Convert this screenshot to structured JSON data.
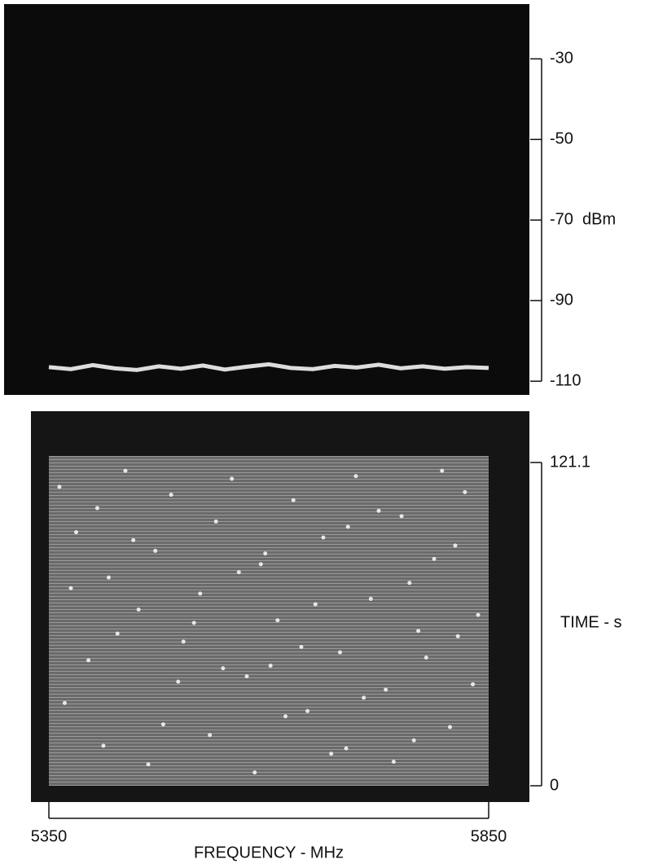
{
  "chart_data": [
    {
      "type": "line",
      "ylabel": "dBm",
      "xlim": [
        5350,
        5850
      ],
      "ylim": [
        -113.4,
        -16.4
      ],
      "yticks": [
        -30,
        -50,
        -70,
        -90,
        -110
      ],
      "series": [
        {
          "color": "#dddddd",
          "x": [
            5350,
            5375,
            5400,
            5425,
            5450,
            5475,
            5500,
            5525,
            5550,
            5575,
            5600,
            5625,
            5650,
            5675,
            5700,
            5725,
            5750,
            5775,
            5800,
            5825,
            5850
          ],
          "values": [
            -106.5,
            -107,
            -106,
            -106.8,
            -107.2,
            -106.3,
            -106.9,
            -106.1,
            -107.1,
            -106.4,
            -105.8,
            -106.7,
            -107,
            -106.2,
            -106.6,
            -105.9,
            -106.8,
            -106.3,
            -106.9,
            -106.5,
            -106.7
          ]
        }
      ]
    },
    {
      "type": "scatter",
      "ylabel": "TIME - s",
      "xlabel": "FREQUENCY - MHz",
      "xlim": [
        5350,
        5850
      ],
      "ylim": [
        0,
        121.1
      ],
      "xticks": [
        5350,
        5850
      ],
      "yticks": [
        0,
        121.1
      ],
      "series": [
        {
          "color": "#e8e8e8",
          "x": [
            5362,
            5381,
            5405,
            5418,
            5437,
            5452,
            5471,
            5489,
            5503,
            5522,
            5540,
            5558,
            5575,
            5591,
            5610,
            5628,
            5644,
            5662,
            5681,
            5699,
            5716,
            5733,
            5751,
            5770,
            5788,
            5806,
            5823,
            5838,
            5368,
            5395,
            5412,
            5446,
            5463,
            5497,
            5515,
            5533,
            5566,
            5584,
            5602,
            5619,
            5653,
            5671,
            5690,
            5708,
            5742,
            5760,
            5779,
            5797,
            5815,
            5832,
            5375,
            5428,
            5480,
            5548,
            5596,
            5637,
            5688,
            5725,
            5765,
            5812
          ],
          "values": [
            112,
            95,
            104,
            78,
            118,
            66,
            88,
            109,
            54,
            72,
            99,
            115,
            41,
            83,
            62,
            107,
            28,
            93,
            50,
            116,
            70,
            36,
            101,
            58,
            85,
            22,
            110,
            64,
            31,
            47,
            15,
            92,
            8,
            39,
            61,
            19,
            80,
            5,
            45,
            26,
            68,
            12,
            97,
            33,
            9,
            76,
            48,
            118,
            56,
            38,
            74,
            57,
            23,
            44,
            87,
            52,
            14,
            103,
            17,
            90
          ]
        }
      ]
    }
  ]
}
